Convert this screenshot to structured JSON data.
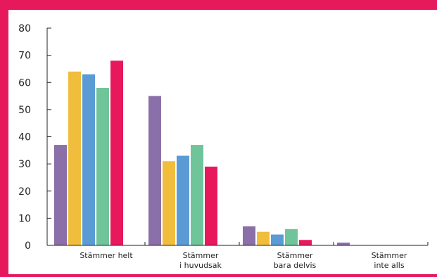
{
  "chart_data": {
    "type": "bar",
    "categories": [
      "Stämmer helt",
      "Stämmer\ni huvudsak",
      "Stämmer\nbara delvis",
      "Stämmer\ninte alls"
    ],
    "series": [
      {
        "color": "#8a6fa8",
        "values": [
          37,
          55,
          7,
          1
        ]
      },
      {
        "color": "#f0bd3c",
        "values": [
          64,
          31,
          5,
          0
        ]
      },
      {
        "color": "#5b9bd5",
        "values": [
          63,
          33,
          4,
          0
        ]
      },
      {
        "color": "#6fc49a",
        "values": [
          58,
          37,
          6,
          0
        ]
      },
      {
        "color": "#e8185c",
        "values": [
          68,
          29,
          2,
          0
        ]
      }
    ],
    "ylim": [
      0,
      80
    ],
    "yticks": [
      0,
      10,
      20,
      30,
      40,
      50,
      60,
      70,
      80
    ],
    "title": "",
    "xlabel": "",
    "ylabel": "",
    "grid": false
  }
}
